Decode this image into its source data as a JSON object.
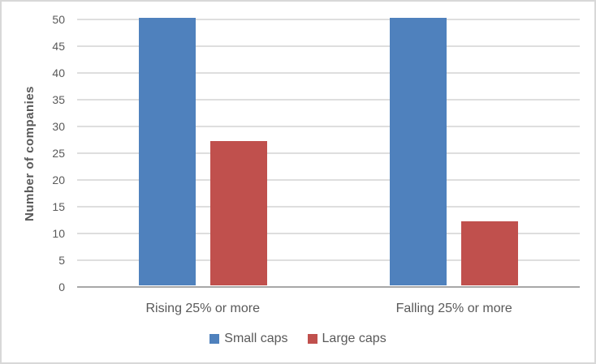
{
  "chart_data": {
    "type": "bar",
    "title": "",
    "categories": [
      "Rising 25% or more",
      "Falling 25% or more"
    ],
    "series": [
      {
        "name": "Small caps",
        "color": "#4f81bd",
        "values": [
          50,
          50
        ]
      },
      {
        "name": "Large caps",
        "color": "#c0504d",
        "values": [
          27,
          12
        ]
      }
    ],
    "xlabel": "",
    "ylabel": "Number of companies",
    "ylim": [
      0,
      50
    ],
    "yticks": [
      0,
      5,
      10,
      15,
      20,
      25,
      30,
      35,
      40,
      45,
      50
    ],
    "grid": true,
    "legend_position": "bottom"
  },
  "colors": {
    "small_caps": "#4f81bd",
    "large_caps": "#c0504d",
    "gridline": "#dedede",
    "axis_line": "#a8a8a8",
    "text": "#595959",
    "background": "#ffffff",
    "frame_border": "#d8d8d8"
  }
}
